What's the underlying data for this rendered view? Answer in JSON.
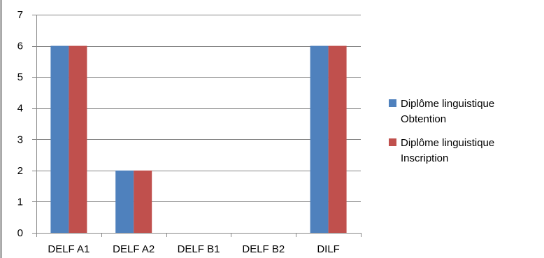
{
  "chart_data": {
    "type": "bar",
    "categories": [
      "DELF A1",
      "DELF A2",
      "DELF B1",
      "DELF B2",
      "DILF"
    ],
    "series": [
      {
        "name": "Diplôme linguistique Obtention",
        "legend_lines": [
          "Diplôme linguistique",
          "Obtention"
        ],
        "values": [
          6,
          2,
          0,
          0,
          6
        ],
        "color": "#4F81BD"
      },
      {
        "name": "Diplôme linguistique Inscription",
        "legend_lines": [
          "Diplôme linguistique",
          "Inscription"
        ],
        "values": [
          6,
          2,
          0,
          0,
          6
        ],
        "color": "#C0504D"
      }
    ],
    "ylim": [
      0,
      7
    ],
    "yticks": [
      0,
      1,
      2,
      3,
      4,
      5,
      6,
      7
    ],
    "grid": true,
    "legend": "right",
    "title": "",
    "xlabel": "",
    "ylabel": ""
  }
}
